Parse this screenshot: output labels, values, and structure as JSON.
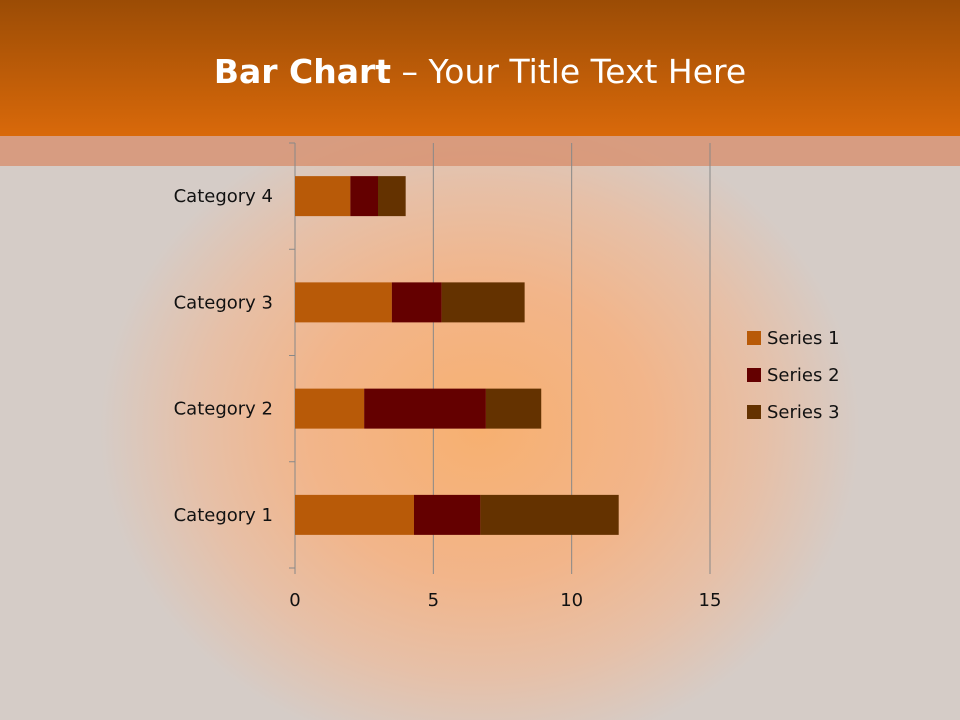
{
  "title": {
    "bold": "Bar Chart",
    "rest": " – Your Title Text Here"
  },
  "chart_data": {
    "type": "bar",
    "orientation": "horizontal",
    "stacked": true,
    "categories": [
      "Category 1",
      "Category 2",
      "Category 3",
      "Category 4"
    ],
    "series": [
      {
        "name": "Series 1",
        "values": [
          4.3,
          2.5,
          3.5,
          2
        ],
        "color": "#b85a08"
      },
      {
        "name": "Series 2",
        "values": [
          2.4,
          4.4,
          1.8,
          1
        ],
        "color": "#640000"
      },
      {
        "name": "Series 3",
        "values": [
          5,
          2,
          3,
          1
        ],
        "color": "#643200"
      }
    ],
    "xlim": [
      0,
      15
    ],
    "xticks": [
      0,
      5,
      10,
      15
    ],
    "grid": true,
    "legend": "right"
  }
}
